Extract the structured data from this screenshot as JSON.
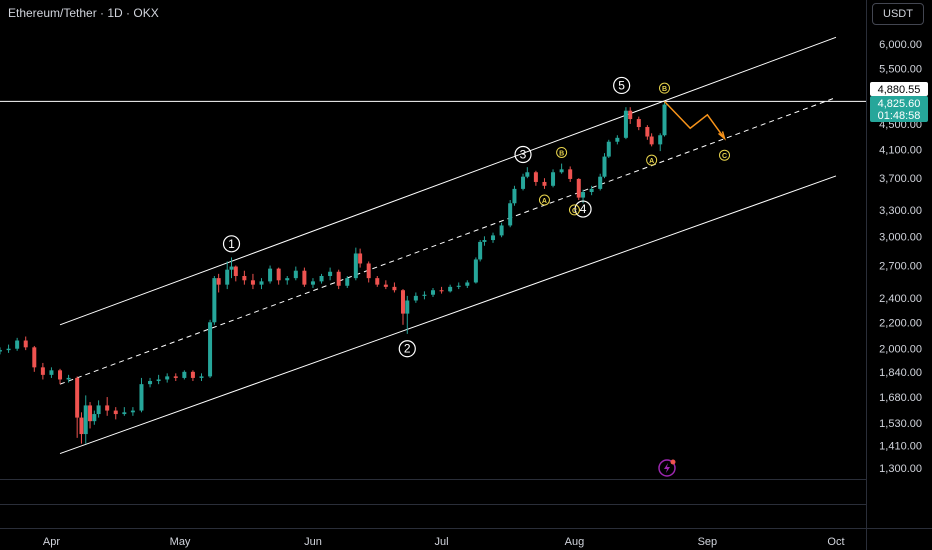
{
  "header": {
    "symbol_title": "Ethereum/Tether · 1D · OKX"
  },
  "toolbar": {
    "currency": "USDT"
  },
  "badges": {
    "live_price": "4,825.60",
    "countdown": "01:48:58",
    "line_price": "4,880.55"
  },
  "colors": {
    "up": "#26a69a",
    "down": "#ef5350",
    "projection": "#f7931a",
    "wave_label": "#e8d44d",
    "lines": "#ffffff"
  },
  "icons": {
    "flash": "flash-icon"
  },
  "chart_data": {
    "type": "candlestick",
    "title": "Ethereum/Tether · 1D · OKX",
    "y_scale": "log",
    "ylim": [
      1250,
      6500
    ],
    "y_ticks": [
      "6,000.00",
      "5,500.00",
      "4,500.00",
      "4,100.00",
      "3,700.00",
      "3,300.00",
      "3,000.00",
      "2,700.00",
      "2,400.00",
      "2,200.00",
      "2,000.00",
      "1,840.00",
      "1,680.00",
      "1,530.00",
      "1,410.00",
      "1,300.00"
    ],
    "x_ticks": [
      "Apr",
      "May",
      "Jun",
      "Jul",
      "Aug",
      "Sep",
      "Oct"
    ],
    "x_range": [
      "2025-03-20",
      "2025-10-08"
    ],
    "candles": [
      [
        "2025-03-20",
        1980,
        2010,
        1960,
        1990
      ],
      [
        "2025-03-22",
        1990,
        2030,
        1970,
        2000
      ],
      [
        "2025-03-24",
        2000,
        2080,
        1985,
        2060
      ],
      [
        "2025-03-26",
        2060,
        2090,
        1990,
        2010
      ],
      [
        "2025-03-28",
        2010,
        2020,
        1840,
        1870
      ],
      [
        "2025-03-30",
        1870,
        1900,
        1790,
        1820
      ],
      [
        "2025-04-01",
        1820,
        1870,
        1800,
        1850
      ],
      [
        "2025-04-03",
        1850,
        1860,
        1760,
        1790
      ],
      [
        "2025-04-05",
        1790,
        1820,
        1770,
        1800
      ],
      [
        "2025-04-07",
        1800,
        1810,
        1450,
        1560
      ],
      [
        "2025-04-08",
        1560,
        1590,
        1420,
        1470
      ],
      [
        "2025-04-09",
        1470,
        1690,
        1420,
        1630
      ],
      [
        "2025-04-10",
        1630,
        1650,
        1500,
        1540
      ],
      [
        "2025-04-11",
        1540,
        1600,
        1520,
        1580
      ],
      [
        "2025-04-12",
        1580,
        1660,
        1560,
        1630
      ],
      [
        "2025-04-14",
        1630,
        1680,
        1570,
        1600
      ],
      [
        "2025-04-16",
        1600,
        1620,
        1550,
        1580
      ],
      [
        "2025-04-18",
        1580,
        1620,
        1570,
        1590
      ],
      [
        "2025-04-20",
        1590,
        1620,
        1570,
        1600
      ],
      [
        "2025-04-22",
        1600,
        1800,
        1590,
        1760
      ],
      [
        "2025-04-24",
        1760,
        1800,
        1740,
        1780
      ],
      [
        "2025-04-26",
        1780,
        1820,
        1760,
        1790
      ],
      [
        "2025-04-28",
        1790,
        1830,
        1770,
        1810
      ],
      [
        "2025-04-30",
        1810,
        1830,
        1780,
        1800
      ],
      [
        "2025-05-02",
        1800,
        1850,
        1790,
        1840
      ],
      [
        "2025-05-04",
        1840,
        1850,
        1780,
        1800
      ],
      [
        "2025-05-06",
        1800,
        1830,
        1780,
        1810
      ],
      [
        "2025-05-08",
        1810,
        2220,
        1800,
        2200
      ],
      [
        "2025-05-09",
        2200,
        2600,
        2180,
        2580
      ],
      [
        "2025-05-10",
        2580,
        2620,
        2450,
        2520
      ],
      [
        "2025-05-12",
        2520,
        2740,
        2480,
        2660
      ],
      [
        "2025-05-13",
        2660,
        2780,
        2580,
        2690
      ],
      [
        "2025-05-14",
        2690,
        2700,
        2550,
        2600
      ],
      [
        "2025-05-16",
        2600,
        2650,
        2520,
        2560
      ],
      [
        "2025-05-18",
        2560,
        2620,
        2480,
        2520
      ],
      [
        "2025-05-20",
        2520,
        2580,
        2480,
        2550
      ],
      [
        "2025-05-22",
        2550,
        2700,
        2530,
        2670
      ],
      [
        "2025-05-24",
        2670,
        2680,
        2520,
        2560
      ],
      [
        "2025-05-26",
        2560,
        2600,
        2520,
        2580
      ],
      [
        "2025-05-28",
        2580,
        2690,
        2560,
        2650
      ],
      [
        "2025-05-30",
        2650,
        2680,
        2500,
        2520
      ],
      [
        "2025-06-01",
        2520,
        2580,
        2490,
        2550
      ],
      [
        "2025-06-03",
        2550,
        2620,
        2530,
        2600
      ],
      [
        "2025-06-05",
        2600,
        2680,
        2560,
        2640
      ],
      [
        "2025-06-07",
        2640,
        2660,
        2480,
        2510
      ],
      [
        "2025-06-09",
        2510,
        2600,
        2490,
        2580
      ],
      [
        "2025-06-11",
        2580,
        2880,
        2560,
        2820
      ],
      [
        "2025-06-12",
        2820,
        2870,
        2680,
        2720
      ],
      [
        "2025-06-14",
        2720,
        2740,
        2540,
        2580
      ],
      [
        "2025-06-16",
        2580,
        2600,
        2500,
        2520
      ],
      [
        "2025-06-18",
        2520,
        2560,
        2480,
        2500
      ],
      [
        "2025-06-20",
        2500,
        2540,
        2450,
        2470
      ],
      [
        "2025-06-22",
        2470,
        2480,
        2180,
        2270
      ],
      [
        "2025-06-23",
        2270,
        2420,
        2110,
        2380
      ],
      [
        "2025-06-25",
        2380,
        2450,
        2360,
        2420
      ],
      [
        "2025-06-27",
        2420,
        2460,
        2390,
        2430
      ],
      [
        "2025-06-29",
        2430,
        2490,
        2410,
        2470
      ],
      [
        "2025-07-01",
        2470,
        2500,
        2440,
        2460
      ],
      [
        "2025-07-03",
        2460,
        2520,
        2450,
        2500
      ],
      [
        "2025-07-05",
        2500,
        2540,
        2480,
        2510
      ],
      [
        "2025-07-07",
        2510,
        2560,
        2490,
        2540
      ],
      [
        "2025-07-09",
        2540,
        2780,
        2530,
        2760
      ],
      [
        "2025-07-10",
        2760,
        2960,
        2740,
        2940
      ],
      [
        "2025-07-11",
        2940,
        3000,
        2900,
        2960
      ],
      [
        "2025-07-13",
        2960,
        3040,
        2930,
        3010
      ],
      [
        "2025-07-15",
        3010,
        3150,
        2990,
        3120
      ],
      [
        "2025-07-17",
        3120,
        3420,
        3100,
        3380
      ],
      [
        "2025-07-18",
        3380,
        3600,
        3350,
        3560
      ],
      [
        "2025-07-20",
        3560,
        3760,
        3540,
        3720
      ],
      [
        "2025-07-21",
        3720,
        3850,
        3700,
        3780
      ],
      [
        "2025-07-23",
        3780,
        3800,
        3600,
        3650
      ],
      [
        "2025-07-25",
        3650,
        3700,
        3560,
        3600
      ],
      [
        "2025-07-27",
        3600,
        3820,
        3580,
        3780
      ],
      [
        "2025-07-29",
        3780,
        3900,
        3760,
        3820
      ],
      [
        "2025-07-31",
        3820,
        3860,
        3650,
        3690
      ],
      [
        "2025-08-02",
        3690,
        3700,
        3420,
        3450
      ],
      [
        "2025-08-03",
        3450,
        3550,
        3380,
        3520
      ],
      [
        "2025-08-05",
        3520,
        3600,
        3480,
        3560
      ],
      [
        "2025-08-07",
        3560,
        3760,
        3540,
        3720
      ],
      [
        "2025-08-08",
        3720,
        4050,
        3700,
        4000
      ],
      [
        "2025-08-09",
        4000,
        4250,
        3980,
        4220
      ],
      [
        "2025-08-11",
        4220,
        4320,
        4180,
        4280
      ],
      [
        "2025-08-13",
        4280,
        4780,
        4260,
        4720
      ],
      [
        "2025-08-14",
        4720,
        4780,
        4500,
        4580
      ],
      [
        "2025-08-16",
        4580,
        4620,
        4400,
        4450
      ],
      [
        "2025-08-18",
        4450,
        4480,
        4250,
        4300
      ],
      [
        "2025-08-19",
        4300,
        4350,
        4150,
        4180
      ],
      [
        "2025-08-21",
        4180,
        4350,
        4080,
        4320
      ],
      [
        "2025-08-22",
        4320,
        4880,
        4300,
        4825.6
      ]
    ],
    "channel": {
      "upper": [
        [
          "2025-04-03",
          2180
        ],
        [
          "2025-10-01",
          6150
        ]
      ],
      "lower": [
        [
          "2025-04-03",
          1370
        ],
        [
          "2025-10-01",
          3730
        ]
      ],
      "mid": [
        [
          "2025-04-03",
          1760
        ],
        [
          "2025-10-01",
          4950
        ]
      ]
    },
    "horizontal_lines": [
      4880.55
    ],
    "waves": [
      {
        "label": "1",
        "style": "circle-white",
        "at": [
          "2025-05-13",
          2920
        ]
      },
      {
        "label": "2",
        "style": "circle-white",
        "at": [
          "2025-06-23",
          2000
        ]
      },
      {
        "label": "3",
        "style": "circle-white",
        "at": [
          "2025-07-20",
          4030
        ]
      },
      {
        "label": "4",
        "style": "circle-white",
        "at": [
          "2025-08-03",
          3310
        ]
      },
      {
        "label": "5",
        "style": "circle-white",
        "at": [
          "2025-08-12",
          5170
        ]
      },
      {
        "label": "A",
        "style": "circle-yellow",
        "at": [
          "2025-07-25",
          3420
        ]
      },
      {
        "label": "B",
        "style": "circle-yellow",
        "at": [
          "2025-07-29",
          4060
        ]
      },
      {
        "label": "C",
        "style": "circle-yellow",
        "at": [
          "2025-08-01",
          3300
        ]
      },
      {
        "label": "A",
        "style": "circle-yellow",
        "at": [
          "2025-08-19",
          3950
        ]
      },
      {
        "label": "B",
        "style": "circle-yellow",
        "at": [
          "2025-08-22",
          5120
        ]
      },
      {
        "label": "C",
        "style": "circle-yellow",
        "at": [
          "2025-09-05",
          4020
        ]
      }
    ],
    "projection_path": [
      [
        "2025-08-22",
        4880
      ],
      [
        "2025-08-28",
        4430
      ],
      [
        "2025-09-01",
        4650
      ],
      [
        "2025-09-05",
        4270
      ]
    ]
  }
}
